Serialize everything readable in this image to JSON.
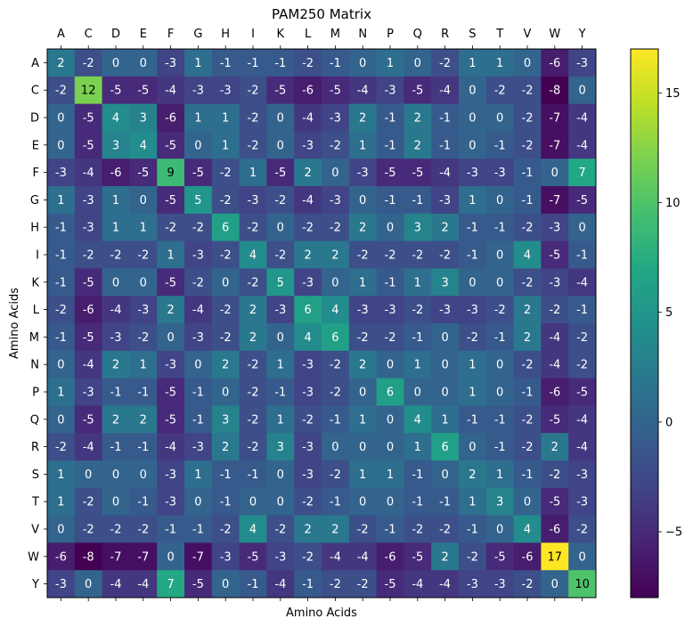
{
  "chart_data": {
    "type": "heatmap",
    "title": "PAM250 Matrix",
    "xlabel": "Amino Acids",
    "ylabel": "Amino Acids",
    "x_categories": [
      "A",
      "C",
      "D",
      "E",
      "F",
      "G",
      "H",
      "I",
      "K",
      "L",
      "M",
      "N",
      "P",
      "Q",
      "R",
      "S",
      "T",
      "V",
      "W",
      "Y"
    ],
    "y_categories": [
      "A",
      "C",
      "D",
      "E",
      "F",
      "G",
      "H",
      "I",
      "K",
      "L",
      "M",
      "N",
      "P",
      "Q",
      "R",
      "S",
      "T",
      "V",
      "W",
      "Y"
    ],
    "x_tick_position": "top",
    "colormap": "viridis",
    "color_range": [
      -8,
      17
    ],
    "colorbar_ticks": [
      -5,
      0,
      5,
      10,
      15
    ],
    "show_cell_values": true,
    "values": [
      [
        2,
        -2,
        0,
        0,
        -3,
        1,
        -1,
        -1,
        -1,
        -2,
        -1,
        0,
        1,
        0,
        -2,
        1,
        1,
        0,
        -6,
        -3
      ],
      [
        -2,
        12,
        -5,
        -5,
        -4,
        -3,
        -3,
        -2,
        -5,
        -6,
        -5,
        -4,
        -3,
        -5,
        -4,
        0,
        -2,
        -2,
        -8,
        0
      ],
      [
        0,
        -5,
        4,
        3,
        -6,
        1,
        1,
        -2,
        0,
        -4,
        -3,
        2,
        -1,
        2,
        -1,
        0,
        0,
        -2,
        -7,
        -4
      ],
      [
        0,
        -5,
        3,
        4,
        -5,
        0,
        1,
        -2,
        0,
        -3,
        -2,
        1,
        -1,
        2,
        -1,
        0,
        -1,
        -2,
        -7,
        -4
      ],
      [
        -3,
        -4,
        -6,
        -5,
        9,
        -5,
        -2,
        1,
        -5,
        2,
        0,
        -3,
        -5,
        -5,
        -4,
        -3,
        -3,
        -1,
        0,
        7
      ],
      [
        1,
        -3,
        1,
        0,
        -5,
        5,
        -2,
        -3,
        -2,
        -4,
        -3,
        0,
        -1,
        -1,
        -3,
        1,
        0,
        -1,
        -7,
        -5
      ],
      [
        -1,
        -3,
        1,
        1,
        -2,
        -2,
        6,
        -2,
        0,
        -2,
        -2,
        2,
        0,
        3,
        2,
        -1,
        -1,
        -2,
        -3,
        0
      ],
      [
        -1,
        -2,
        -2,
        -2,
        1,
        -3,
        -2,
        4,
        -2,
        2,
        2,
        -2,
        -2,
        -2,
        -2,
        -1,
        0,
        4,
        -5,
        -1
      ],
      [
        -1,
        -5,
        0,
        0,
        -5,
        -2,
        0,
        -2,
        5,
        -3,
        0,
        1,
        -1,
        1,
        3,
        0,
        0,
        -2,
        -3,
        -4
      ],
      [
        -2,
        -6,
        -4,
        -3,
        2,
        -4,
        -2,
        2,
        -3,
        6,
        4,
        -3,
        -3,
        -2,
        -3,
        -3,
        -2,
        2,
        -2,
        -1
      ],
      [
        -1,
        -5,
        -3,
        -2,
        0,
        -3,
        -2,
        2,
        0,
        4,
        6,
        -2,
        -2,
        -1,
        0,
        -2,
        -1,
        2,
        -4,
        -2
      ],
      [
        0,
        -4,
        2,
        1,
        -3,
        0,
        2,
        -2,
        1,
        -3,
        -2,
        2,
        0,
        1,
        0,
        1,
        0,
        -2,
        -4,
        -2
      ],
      [
        1,
        -3,
        -1,
        -1,
        -5,
        -1,
        0,
        -2,
        -1,
        -3,
        -2,
        0,
        6,
        0,
        0,
        1,
        0,
        -1,
        -6,
        -5
      ],
      [
        0,
        -5,
        2,
        2,
        -5,
        -1,
        3,
        -2,
        1,
        -2,
        -1,
        1,
        0,
        4,
        1,
        -1,
        -1,
        -2,
        -5,
        -4
      ],
      [
        -2,
        -4,
        -1,
        -1,
        -4,
        -3,
        2,
        -2,
        3,
        -3,
        0,
        0,
        0,
        1,
        6,
        0,
        -1,
        -2,
        2,
        -4
      ],
      [
        1,
        0,
        0,
        0,
        -3,
        1,
        -1,
        -1,
        0,
        -3,
        -2,
        1,
        1,
        -1,
        0,
        2,
        1,
        -1,
        -2,
        -3
      ],
      [
        1,
        -2,
        0,
        -1,
        -3,
        0,
        -1,
        0,
        0,
        -2,
        -1,
        0,
        0,
        -1,
        -1,
        1,
        3,
        0,
        -5,
        -3
      ],
      [
        0,
        -2,
        -2,
        -2,
        -1,
        -1,
        -2,
        4,
        -2,
        2,
        2,
        -2,
        -1,
        -2,
        -2,
        -1,
        0,
        4,
        -6,
        -2
      ],
      [
        -6,
        -8,
        -7,
        -7,
        0,
        -7,
        -3,
        -5,
        -3,
        -2,
        -4,
        -4,
        -6,
        -5,
        2,
        -2,
        -5,
        -6,
        17,
        0
      ],
      [
        -3,
        0,
        -4,
        -4,
        7,
        -5,
        0,
        -1,
        -4,
        -1,
        -2,
        -2,
        -5,
        -4,
        -4,
        -3,
        -3,
        -2,
        0,
        10
      ]
    ]
  }
}
